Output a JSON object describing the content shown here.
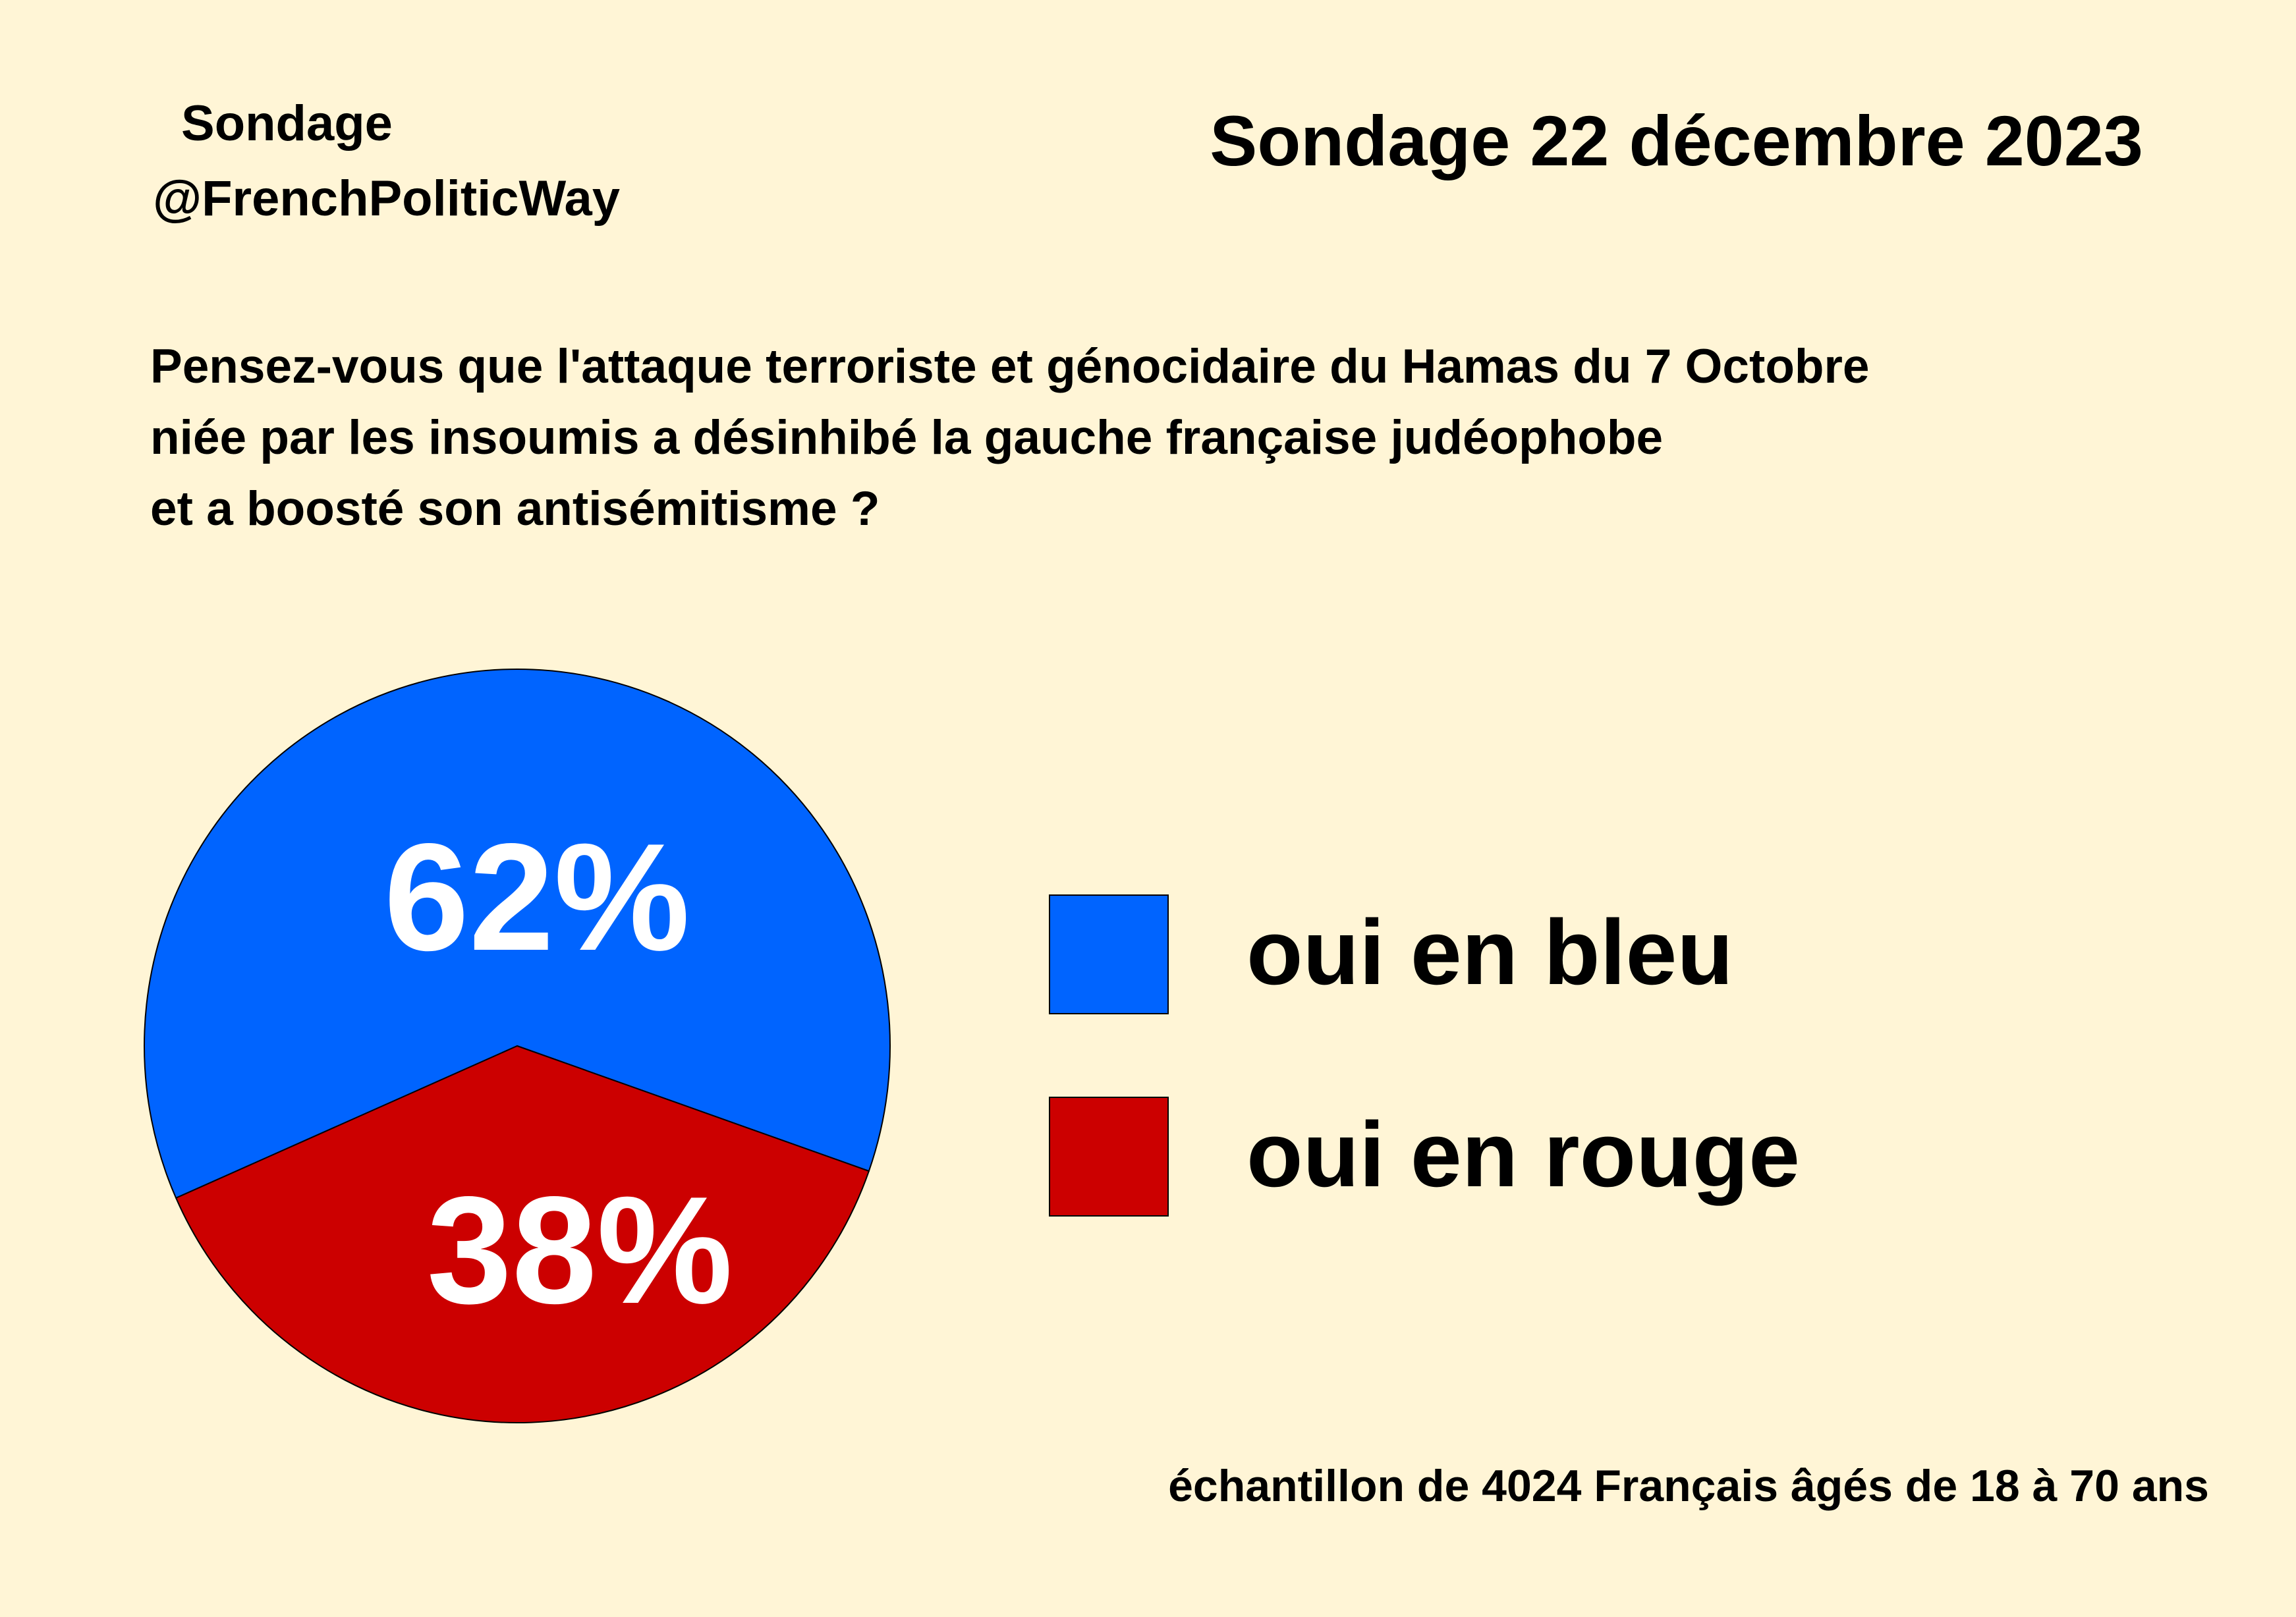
{
  "header": {
    "brand_line1": "Sondage",
    "brand_line2": "@FrenchPoliticWay",
    "date_title": "Sondage 22 décembre 2023"
  },
  "question": {
    "lines": [
      "Pensez-vous que l'attaque terroriste et génocidaire du Hamas du 7 Octobre",
      "niée par les insoumis a désinhibé la gauche française judéophobe",
      "et a boosté son antisémitisme ?"
    ]
  },
  "chart_data": {
    "type": "pie",
    "slices": [
      {
        "label": "oui en bleu",
        "value": 62,
        "display": "62%",
        "color": "#0064ff"
      },
      {
        "label": "oui en rouge",
        "value": 38,
        "display": "38%",
        "color": "#cc0000"
      }
    ],
    "legend_position": "right"
  },
  "footnote": "échantillon de 4024 Français âgés de 18 à 70 ans",
  "colors": {
    "background": "#fff5d6",
    "text": "#000000",
    "slice_label": "#ffffff"
  }
}
